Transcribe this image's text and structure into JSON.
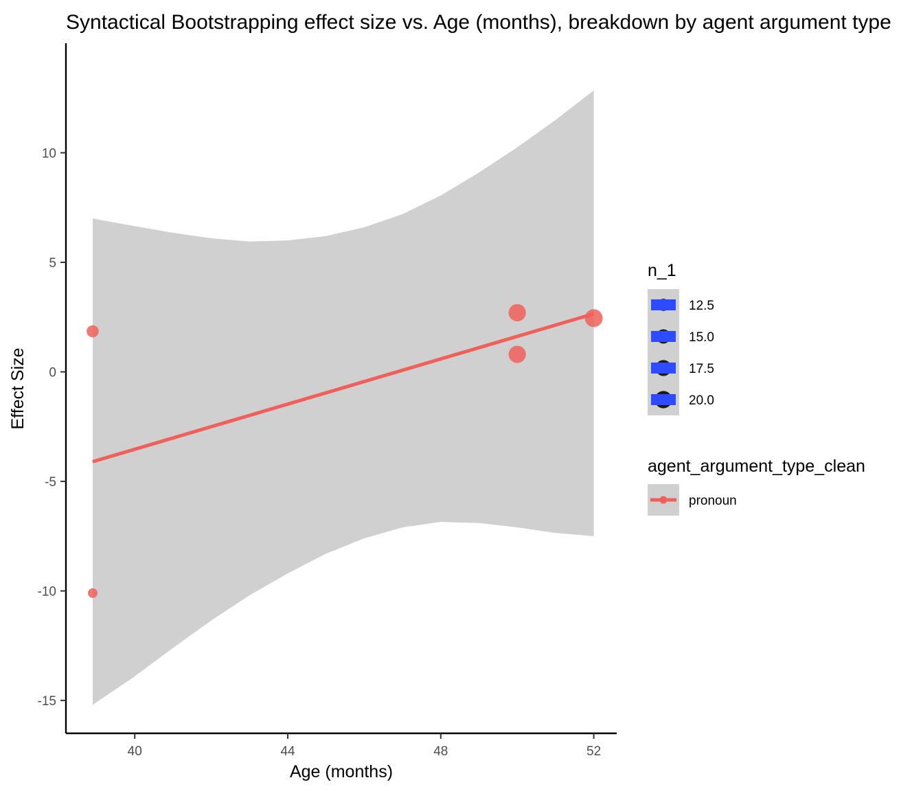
{
  "chart_data": {
    "type": "scatter",
    "title": "Syntactical Bootstrapping effect size vs. Age (months), breakdown by agent argument type",
    "xlabel": "Age (months)",
    "ylabel": "Effect Size",
    "xlim": [
      38.2,
      52.6
    ],
    "ylim": [
      -16.5,
      15
    ],
    "x_ticks": [
      40,
      44,
      48,
      52
    ],
    "y_ticks": [
      -15,
      -10,
      -5,
      0,
      5,
      10
    ],
    "x_tick_labels": [
      "40",
      "44",
      "48",
      "52"
    ],
    "y_tick_labels": [
      "-15",
      "-10",
      "-5",
      "0",
      "5",
      "10"
    ],
    "grid": false,
    "series": [
      {
        "name": "pronoun",
        "color": "#f0605a",
        "points": [
          {
            "x": 38.9,
            "y": 1.85,
            "n": 12.5
          },
          {
            "x": 38.9,
            "y": -10.1,
            "n": 10.5
          },
          {
            "x": 50.0,
            "y": 2.7,
            "n": 20.0
          },
          {
            "x": 50.0,
            "y": 0.8,
            "n": 20.0
          },
          {
            "x": 52.0,
            "y": 2.45,
            "n": 21.0
          }
        ],
        "fit_line": {
          "x": [
            38.9,
            52.0
          ],
          "y": [
            -4.1,
            2.65
          ]
        },
        "confidence_band": {
          "x": [
            38.9,
            40,
            41,
            42,
            43,
            44,
            45,
            46,
            47,
            48,
            49,
            50,
            51,
            52
          ],
          "upper": [
            7.0,
            6.65,
            6.35,
            6.1,
            5.95,
            6.0,
            6.2,
            6.6,
            7.2,
            8.05,
            9.1,
            10.25,
            11.5,
            12.85
          ],
          "lower": [
            -15.2,
            -13.9,
            -12.6,
            -11.35,
            -10.2,
            -9.2,
            -8.3,
            -7.6,
            -7.1,
            -6.85,
            -6.9,
            -7.1,
            -7.35,
            -7.5
          ]
        }
      }
    ],
    "legend": {
      "position": "right",
      "size_title": "n_1",
      "size_labels": [
        "12.5",
        "15.0",
        "17.5",
        "20.0"
      ],
      "size_values": [
        12.5,
        15.0,
        17.5,
        20.0
      ],
      "size_key_color": "#2f4bff",
      "color_title": "agent_argument_type_clean",
      "color_labels": [
        "pronoun"
      ],
      "key_background": "#d0d0d0"
    },
    "band_color": "#d0d0d0"
  }
}
